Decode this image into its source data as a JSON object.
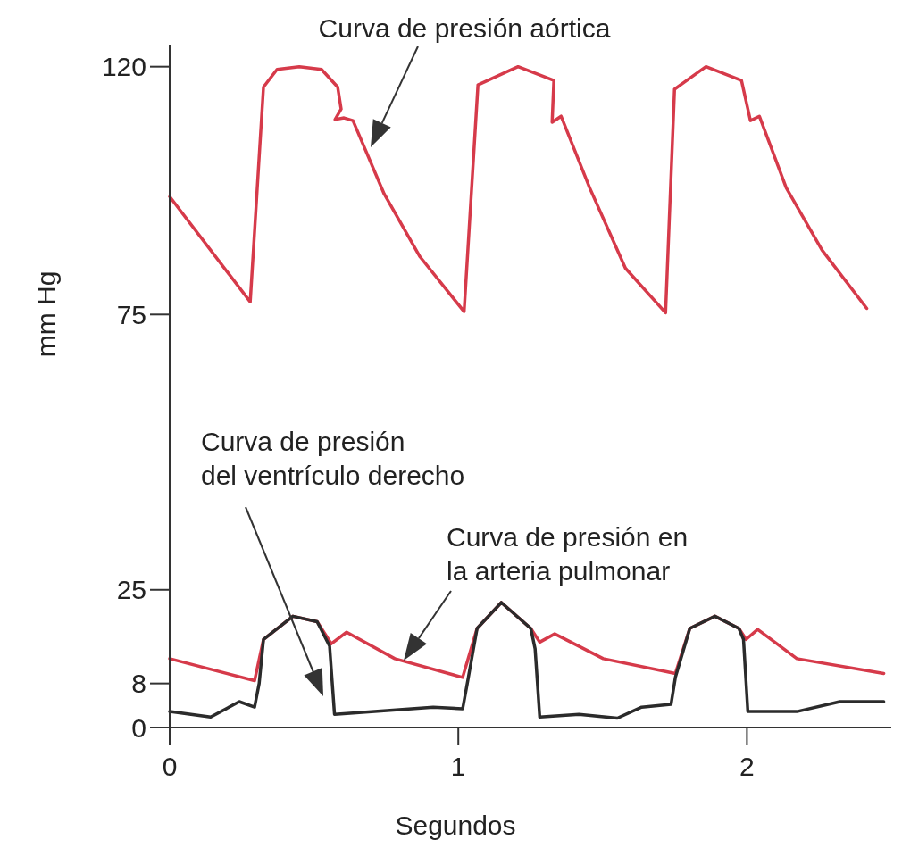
{
  "chart_data": {
    "type": "line",
    "xlabel": "Segundos",
    "ylabel": "mm Hg",
    "xlim": [
      0,
      2.5
    ],
    "xticks": [
      0,
      1,
      2
    ],
    "ylim": [
      0,
      124
    ],
    "yticks": [
      0,
      8,
      25,
      75,
      120
    ],
    "line_style": "solid",
    "series": [
      {
        "color": "#d63a4a",
        "x": [
          0,
          0.279,
          0.325,
          0.372,
          0.449,
          0.526,
          0.582,
          0.594,
          0.573,
          0.604,
          0.635,
          0.743,
          0.867,
          1.02,
          1.068,
          1.207,
          1.331,
          1.325,
          1.356,
          1.455,
          1.579,
          1.718,
          1.749,
          1.858,
          1.981,
          2.012,
          2.043,
          2.136,
          2.26,
          2.415
        ],
        "values": [
          96.4,
          77.3,
          116.3,
          119.5,
          120,
          119.5,
          116.3,
          112.3,
          110.4,
          110.7,
          110.2,
          96.9,
          85.5,
          75.5,
          116.7,
          120,
          117.5,
          109.9,
          111,
          98,
          83.4,
          75.3,
          115.9,
          120,
          117.5,
          110.2,
          111,
          98,
          86.7,
          76.1
        ]
      },
      {
        "color": "#d63a4a",
        "x": [
          0,
          0.294,
          0.325,
          0.427,
          0.511,
          0.56,
          0.613,
          0.78,
          1.015,
          1.065,
          1.149,
          1.251,
          1.282,
          1.334,
          1.502,
          1.752,
          1.802,
          1.889,
          1.972,
          1.997,
          2.037,
          2.173,
          2.474
        ],
        "values": [
          12.5,
          8.5,
          16,
          20.2,
          19.2,
          15.2,
          17.3,
          12.5,
          9.1,
          18,
          22.7,
          18,
          15.5,
          17,
          12.5,
          9.8,
          18,
          20.2,
          18,
          16,
          17.8,
          12.5,
          9.8
        ]
      },
      {
        "color": "#2b2b2b",
        "x": [
          0,
          0.142,
          0.241,
          0.294,
          0.31,
          0.325,
          0.427,
          0.511,
          0.554,
          0.571,
          0.913,
          1.015,
          1.031,
          1.065,
          1.149,
          1.251,
          1.266,
          1.282,
          1.418,
          1.551,
          1.635,
          1.737,
          1.752,
          1.802,
          1.889,
          1.972,
          1.988,
          2.003,
          2.173,
          2.322,
          2.474
        ],
        "values": [
          2.9,
          1.9,
          4.7,
          3.7,
          8,
          16,
          20.2,
          19.2,
          14.8,
          2.4,
          3.7,
          3.4,
          8,
          18,
          22.7,
          18,
          14.3,
          1.9,
          2.4,
          1.7,
          3.7,
          4.2,
          9.1,
          18,
          20.2,
          18,
          16,
          2.9,
          2.9,
          4.7,
          4.7
        ]
      }
    ],
    "annotations": [
      "Curva de presión aórtica",
      "Curva de presión\ndel ventrículo derecho",
      "Curva de presión en\nla arteria pulmonar"
    ]
  }
}
